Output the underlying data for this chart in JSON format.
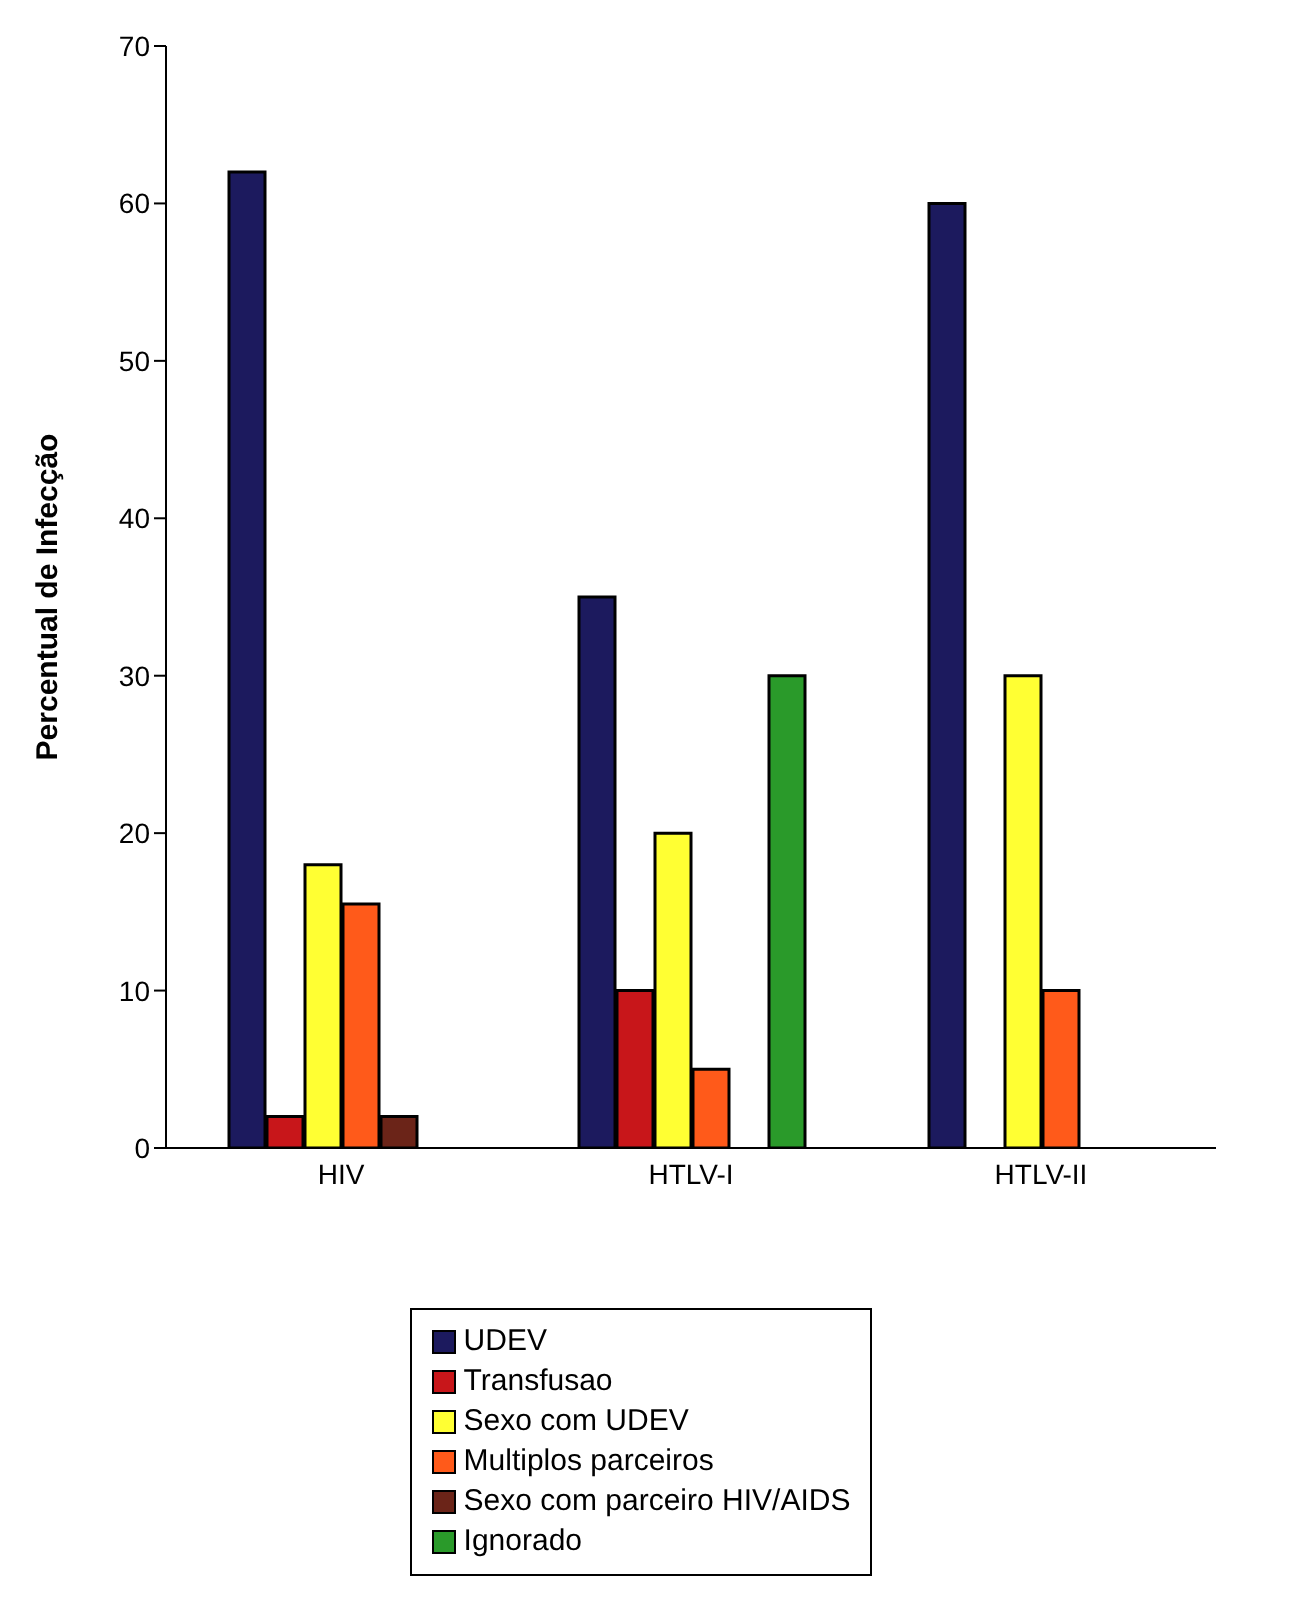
{
  "chart_data": {
    "type": "bar",
    "ylabel": "Percentual de Infecção",
    "categories": [
      "HIV",
      "HTLV-I",
      "HTLV-II"
    ],
    "series": [
      {
        "name": "UDEV",
        "color": "#1c1a5e",
        "values": [
          62,
          35,
          60
        ]
      },
      {
        "name": "Transfusao",
        "color": "#c8161a",
        "values": [
          2,
          10,
          null
        ]
      },
      {
        "name": "Sexo com UDEV",
        "color": "#ffff33",
        "values": [
          18,
          20,
          30
        ]
      },
      {
        "name": "Multiplos parceiros",
        "color": "#ff5a1a",
        "values": [
          15.5,
          5,
          10
        ]
      },
      {
        "name": "Sexo com parceiro HIV/AIDS",
        "color": "#6b2418",
        "values": [
          2,
          null,
          null
        ]
      },
      {
        "name": "Ignorado",
        "color": "#2a9a2a",
        "values": [
          null,
          30,
          null
        ]
      }
    ],
    "ylim": [
      0,
      70
    ],
    "yticks": [
      0,
      10,
      20,
      30,
      40,
      50,
      60,
      70
    ],
    "legend": "bottom"
  }
}
